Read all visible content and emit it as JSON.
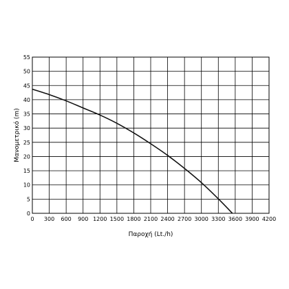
{
  "chart_data": {
    "type": "line",
    "title": "",
    "xlabel": "Παροχή (Lt./h)",
    "ylabel": "Μανομετρικό  (m)",
    "xlim": [
      0,
      4200
    ],
    "ylim": [
      0,
      55
    ],
    "xticks": [
      0,
      300,
      600,
      900,
      1200,
      1500,
      1800,
      2100,
      2400,
      2700,
      3000,
      3300,
      3600,
      3900,
      4200
    ],
    "yticks": [
      0,
      5,
      10,
      15,
      20,
      25,
      30,
      35,
      40,
      45,
      50,
      55
    ],
    "grid": true,
    "colors": {
      "curve": "#111111",
      "grid": "#000000",
      "background": "#ffffff"
    },
    "series": [
      {
        "name": "",
        "x": [
          0,
          300,
          600,
          900,
          1200,
          1500,
          1800,
          2100,
          2400,
          2700,
          3000,
          3300,
          3550
        ],
        "y": [
          43.7,
          41.8,
          39.6,
          37.1,
          34.6,
          31.7,
          28.3,
          24.5,
          20.4,
          15.8,
          10.8,
          5.1,
          0
        ]
      }
    ]
  }
}
